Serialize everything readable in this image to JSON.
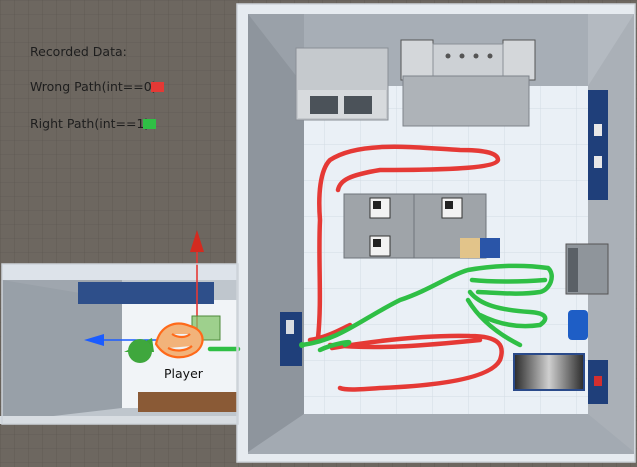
{
  "legend": {
    "title": "Recorded Data:",
    "wrong_path": "Wrong Path(int==0)",
    "right_path": "Right Path(int==1)"
  },
  "colors": {
    "wrong_path": "#e53935",
    "right_path": "#2fbf45",
    "background": "#6d6760",
    "room_floor": "#e9eef4",
    "room_wall": "#9ea5ad"
  },
  "player_label": "Player"
}
